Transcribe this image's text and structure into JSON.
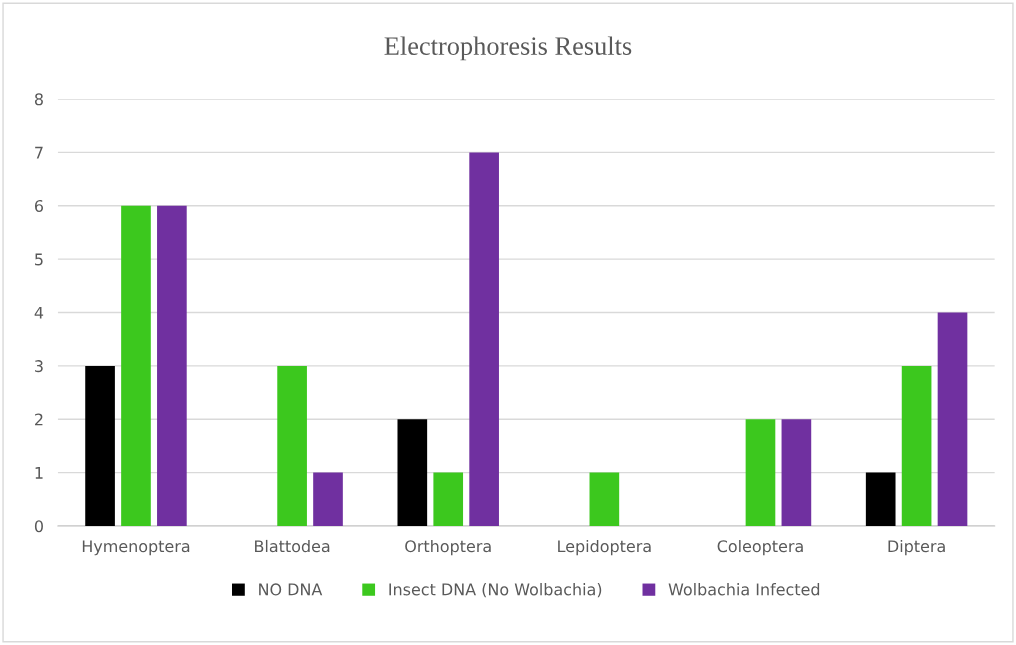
{
  "chart_data": {
    "type": "bar",
    "title": "Electrophoresis Results",
    "categories": [
      "Hymenoptera",
      "Blattodea",
      "Orthoptera",
      "Lepidoptera",
      "Coleoptera",
      "Diptera"
    ],
    "series": [
      {
        "name": "NO DNA",
        "color": "#000000",
        "values": [
          3,
          0,
          2,
          0,
          0,
          1
        ]
      },
      {
        "name": "Insect DNA (No Wolbachia)",
        "color": "#3cc81e",
        "values": [
          6,
          3,
          1,
          1,
          2,
          3
        ]
      },
      {
        "name": "Wolbachia Infected",
        "color": "#7030a0",
        "values": [
          6,
          1,
          7,
          0,
          2,
          4
        ]
      }
    ],
    "ylim": [
      0,
      8
    ],
    "yticks": [
      0,
      1,
      2,
      3,
      4,
      5,
      6,
      7,
      8
    ],
    "grid": "y",
    "legend": "bottom"
  }
}
